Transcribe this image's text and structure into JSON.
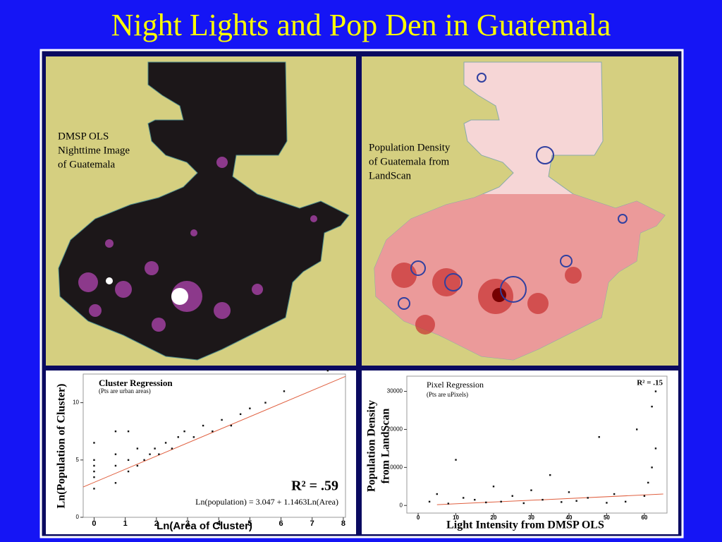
{
  "title": "Night Lights and Pop Den in Guatemala",
  "maps": [
    {
      "label": [
        "DMSP OLS",
        "Nighttime Image",
        "of Guatemala"
      ]
    },
    {
      "label": [
        "Population Density",
        "of Guatemala from",
        "LandScan"
      ]
    }
  ],
  "chart_data": [
    {
      "type": "scatter",
      "title": "Cluster Regression",
      "subtitle": "(Pts are urban areas)",
      "x_label": "Ln(Area of Cluster)",
      "y_label": [
        "Ln(Population of Cluster)"
      ],
      "annotations": [
        "R² = .59",
        "Ln(population) = 3.047 + 1.1463Ln(Area)"
      ],
      "x": [
        0,
        0,
        0,
        0,
        0,
        0,
        0.69,
        0.69,
        0.69,
        0.69,
        1.1,
        1.1,
        1.1,
        1.39,
        1.39,
        1.61,
        1.79,
        1.95,
        2.08,
        2.3,
        2.5,
        2.7,
        2.9,
        3.2,
        3.5,
        3.8,
        4.1,
        4.4,
        4.7,
        5.0,
        5.5,
        6.1,
        7.5
      ],
      "values": [
        2.5,
        3.5,
        4,
        4.5,
        5,
        6.5,
        3,
        4.5,
        5.5,
        7.5,
        4,
        5,
        7.5,
        4.5,
        6,
        5,
        5.5,
        6,
        5.5,
        6.5,
        6,
        7,
        7.5,
        7,
        8,
        7.5,
        8.5,
        8,
        9,
        9.5,
        10,
        11,
        12.8
      ],
      "fit": {
        "intercept": 3.047,
        "slope": 1.1463
      },
      "xlim": [
        -0.35,
        8.07
      ],
      "xticks": [
        0,
        1,
        2,
        3,
        4,
        5,
        6,
        7,
        8
      ],
      "ylim": [
        0,
        12.5
      ],
      "yticks": [
        0,
        5,
        10
      ],
      "color": "#111111",
      "fit_color": "#e06040"
    },
    {
      "type": "scatter",
      "title": "Pixel Regression",
      "subtitle": "(Pts are uPixels)",
      "x_label": "Light Intensity from DMSP OLS",
      "y_label": [
        "Population Density",
        "from LandScan"
      ],
      "annotations": [
        "R² = .15"
      ],
      "x": [
        3,
        5,
        8,
        10,
        12,
        15,
        18,
        20,
        22,
        25,
        28,
        30,
        33,
        35,
        38,
        40,
        42,
        45,
        48,
        50,
        52,
        55,
        58,
        60,
        61,
        62,
        62,
        63,
        63
      ],
      "values": [
        1000,
        3000,
        500,
        12000,
        2000,
        1500,
        800,
        5000,
        1000,
        2500,
        600,
        4000,
        1500,
        8000,
        900,
        3500,
        1200,
        2000,
        18000,
        700,
        3000,
        1000,
        20000,
        2500,
        6000,
        10000,
        26000,
        15000,
        30000
      ],
      "trend": {
        "x": [
          5,
          65
        ],
        "y": [
          200,
          3000
        ]
      },
      "xlim": [
        -3,
        66
      ],
      "xticks": [
        0,
        10,
        20,
        30,
        40,
        50,
        60
      ],
      "ylim": [
        -2000,
        34000
      ],
      "yticks": [
        0,
        10000,
        20000,
        30000
      ],
      "color": "#111111",
      "fit_color": "#e06040"
    }
  ]
}
